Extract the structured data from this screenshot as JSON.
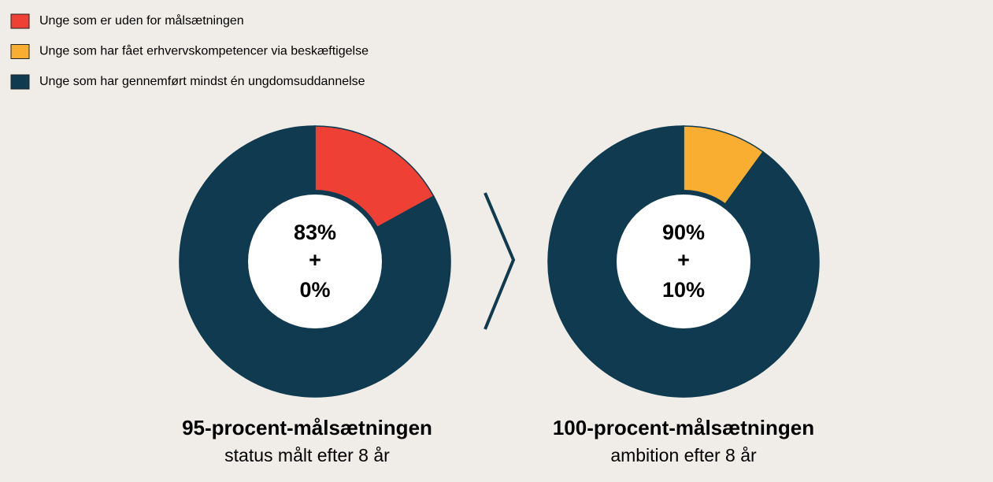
{
  "legend": {
    "items": [
      {
        "name": "Unge som er uden for målsætningen",
        "color": "#ee4035"
      },
      {
        "name": "Unge som har fået erhvervskompetencer via beskæftigelse",
        "color": "#f9ae32"
      },
      {
        "name": "Unge som har gennemført mindst én ungdomsuddannelse",
        "color": "#0f3a4f"
      }
    ]
  },
  "chart_data": [
    {
      "type": "pie",
      "title": "95-procent-målsætningen",
      "subtitle": "status målt efter 8 år",
      "values": [
        17,
        0,
        83
      ],
      "value_labels": [
        null,
        "0%",
        "83%"
      ],
      "operator": "+"
    },
    {
      "type": "pie",
      "title": "100-procent-målsætningen",
      "subtitle": "ambition efter 8 år",
      "values": [
        0,
        10,
        90
      ],
      "value_labels": [
        null,
        "10%",
        "90%"
      ],
      "operator": "+"
    }
  ]
}
